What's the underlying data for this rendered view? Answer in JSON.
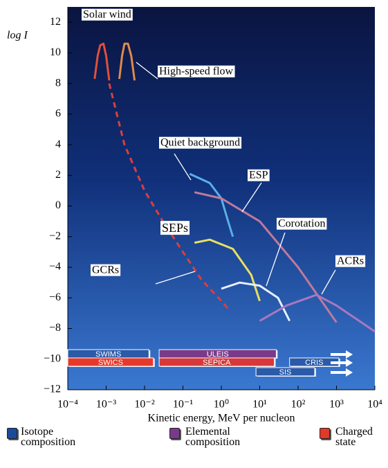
{
  "chart_data": {
    "type": "line",
    "x_label": "Kinetic energy, MeV per nucleon",
    "y_label": "log I",
    "xlim": [
      0.0001,
      10000
    ],
    "ylim": [
      -12,
      13
    ],
    "log_x": true,
    "xticks": [
      {
        "value": 0.0001,
        "label": "10⁻⁴"
      },
      {
        "value": 0.001,
        "label": "10⁻³"
      },
      {
        "value": 0.01,
        "label": "10⁻²"
      },
      {
        "value": 0.1,
        "label": "10⁻¹"
      },
      {
        "value": 1,
        "label": "10⁰"
      },
      {
        "value": 10,
        "label": "10¹"
      },
      {
        "value": 100,
        "label": "10²"
      },
      {
        "value": 1000,
        "label": "10³"
      },
      {
        "value": 10000,
        "label": "10⁴"
      }
    ],
    "yticks": [
      {
        "value": -12,
        "label": "−12"
      },
      {
        "value": -10,
        "label": "−10"
      },
      {
        "value": -8,
        "label": "−8"
      },
      {
        "value": -6,
        "label": "−6"
      },
      {
        "value": -4,
        "label": "−4"
      },
      {
        "value": -2,
        "label": "−2"
      },
      0,
      2,
      4,
      6,
      8,
      10,
      12
    ],
    "series": [
      {
        "name": "Solar wind",
        "color": "#e0503a",
        "x": [
          0.0005,
          0.0006,
          0.0007,
          0.00085,
          0.001,
          0.0012
        ],
        "values": [
          8.3,
          9.8,
          10.5,
          10.6,
          9.8,
          8.2
        ]
      },
      {
        "name": "High-speed flow",
        "color": "#e08a4a",
        "x": [
          0.0022,
          0.0026,
          0.003,
          0.0037,
          0.0045,
          0.0055
        ],
        "values": [
          8.3,
          9.8,
          10.6,
          10.6,
          9.8,
          8.2
        ]
      },
      {
        "name": "Quiet background",
        "color": "#d9403a",
        "dashed": true,
        "x": [
          0.0012,
          0.003,
          0.01,
          0.03,
          0.1,
          0.3,
          1,
          1.5
        ],
        "values": [
          8,
          4,
          1,
          -1,
          -3,
          -4.8,
          -6.2,
          -6.7
        ]
      },
      {
        "name": "ESP",
        "color": "#5ab0e8",
        "x": [
          0.15,
          0.5,
          1,
          1.5,
          2
        ],
        "values": [
          2.1,
          1.5,
          0.5,
          -1,
          -2
        ]
      },
      {
        "name": "SEPs",
        "color": "#c07a9a",
        "x": [
          0.2,
          1,
          10,
          100,
          1000
        ],
        "values": [
          0.9,
          0.5,
          -1,
          -4,
          -7.6
        ]
      },
      {
        "name": "Corotation",
        "color": "#e8e060",
        "x": [
          0.2,
          0.5,
          2,
          6,
          10
        ],
        "values": [
          -2.4,
          -2.2,
          -2.8,
          -4.5,
          -6.2
        ]
      },
      {
        "name": "ACRs",
        "color": "#e8f0ff",
        "x": [
          1,
          3,
          10,
          30,
          60
        ],
        "values": [
          -5.4,
          -5,
          -5.2,
          -6,
          -7.5
        ]
      },
      {
        "name": "GCRs",
        "color": "#a878c0",
        "x": [
          10,
          50,
          300,
          1000,
          10000
        ],
        "values": [
          -7.5,
          -6.5,
          -5.8,
          -6.5,
          -8.2
        ]
      }
    ],
    "instruments": [
      {
        "name": "SWIMS",
        "color": "#2a5aa8",
        "range": [
          0.0001,
          0.013
        ]
      },
      {
        "name": "SWICS",
        "color": "#e8382a",
        "range": [
          0.0001,
          0.017
        ]
      },
      {
        "name": "ULEIS",
        "color": "#7a3a8a",
        "range": [
          0.024,
          27
        ]
      },
      {
        "name": "SEPICA",
        "color": "#d8383a",
        "range": [
          0.024,
          24
        ]
      },
      {
        "name": "SIS",
        "color": "#2a5aa8",
        "range": [
          8,
          270
        ]
      },
      {
        "name": "CRIS",
        "color": "#2a5aa8",
        "range": [
          60,
          1150
        ]
      }
    ],
    "legend": [
      {
        "label": "Isotope composition",
        "color": "#1a4a9a"
      },
      {
        "label": "Elemental composition",
        "color": "#7a3a8a"
      },
      {
        "label": "Charged state",
        "color": "#e03a2a"
      }
    ]
  }
}
